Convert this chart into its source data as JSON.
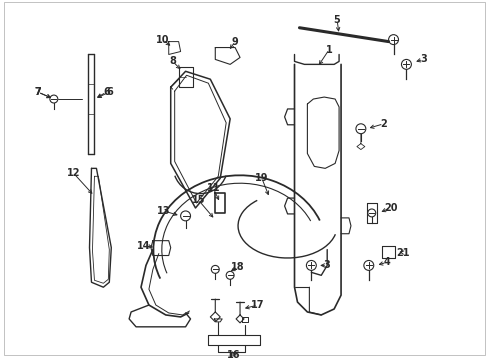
{
  "background": "#ffffff",
  "line_color": "#2a2a2a",
  "label_fontsize": 7,
  "fig_width": 4.89,
  "fig_height": 3.6,
  "dpi": 100,
  "border_color": "#999999",
  "annotation_color": "#1a1a1a"
}
